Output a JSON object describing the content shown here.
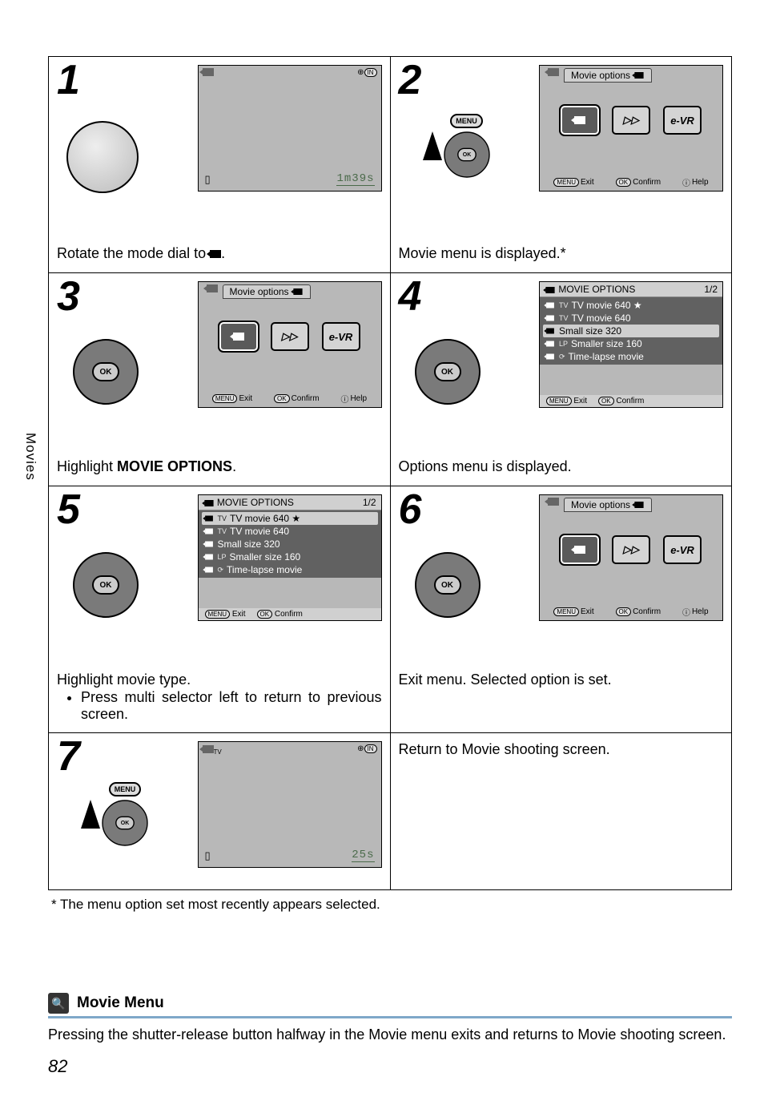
{
  "side_tab": "Movies",
  "steps": [
    {
      "num": "1",
      "caption_prefix": "Rotate the mode dial to ",
      "caption_suffix": ".",
      "lcd_type": "blank",
      "counter": "1m39s",
      "control": "dial"
    },
    {
      "num": "2",
      "caption": "Movie menu is displayed.*",
      "lcd_type": "options",
      "lcd_title": "Movie options",
      "icon_labels": [
        "",
        "▷▷",
        "e-VR"
      ],
      "selected_icon": 0,
      "bottom_labels": {
        "exit": "Exit",
        "confirm": "Confirm",
        "help": "Help"
      },
      "control": "menu_arrow"
    },
    {
      "num": "3",
      "caption_html": "Highlight <b>MOVIE OPTIONS</b>.",
      "lcd_type": "options",
      "lcd_title": "Movie options",
      "icon_labels": [
        "",
        "▷▷",
        "e-VR"
      ],
      "selected_icon": 0,
      "bottom_labels": {
        "exit": "Exit",
        "confirm": "Confirm",
        "help": "Help"
      },
      "control": "dpad"
    },
    {
      "num": "4",
      "caption": "Options menu is displayed.",
      "lcd_type": "list",
      "list_header": "MOVIE OPTIONS",
      "list_page": "1/2",
      "list_items": [
        {
          "label": "TV movie 640 ★",
          "hl": false,
          "tag": "TV"
        },
        {
          "label": "TV movie 640",
          "hl": false,
          "tag": "TV"
        },
        {
          "label": "Small size 320",
          "hl": true,
          "tag": ""
        },
        {
          "label": "Smaller size 160",
          "hl": false,
          "tag": "LP"
        },
        {
          "label": "Time-lapse movie",
          "hl": false,
          "tag": "⟳"
        }
      ],
      "bottom_labels": {
        "exit": "Exit",
        "confirm": "Confirm"
      },
      "control": "dpad"
    },
    {
      "num": "5",
      "caption": "Highlight movie type.",
      "bullets": [
        "Press multi selector left to return to previous screen."
      ],
      "lcd_type": "list",
      "list_header": "MOVIE OPTIONS",
      "list_page": "1/2",
      "list_items": [
        {
          "label": "TV movie 640 ★",
          "hl": true,
          "tag": "TV"
        },
        {
          "label": "TV movie 640",
          "hl": false,
          "tag": "TV"
        },
        {
          "label": "Small size 320",
          "hl": false,
          "tag": ""
        },
        {
          "label": "Smaller size 160",
          "hl": false,
          "tag": "LP"
        },
        {
          "label": "Time-lapse movie",
          "hl": false,
          "tag": "⟳"
        }
      ],
      "bottom_labels": {
        "exit": "Exit",
        "confirm": "Confirm"
      },
      "control": "dpad_flash"
    },
    {
      "num": "6",
      "caption": "Exit menu. Selected option is set.",
      "lcd_type": "options",
      "lcd_title": "Movie options",
      "icon_labels": [
        "",
        "▷▷",
        "e-VR"
      ],
      "selected_icon": 0,
      "bottom_labels": {
        "exit": "Exit",
        "confirm": "Confirm",
        "help": "Help"
      },
      "control": "dpad"
    },
    {
      "num": "7",
      "caption_right": "Return to Movie shooting screen.",
      "lcd_type": "blank",
      "counter": "25s",
      "control": "menu_arrow",
      "top_tag": "TV"
    }
  ],
  "footnote": "* The menu option set most recently appears selected.",
  "section": {
    "title": "Movie Menu",
    "body": "Pressing the shutter-release button halfway in the Movie menu exits and returns to Movie shooting screen."
  },
  "page_number": "82",
  "labels": {
    "menu": "MENU",
    "ok": "OK",
    "in": "IN"
  }
}
